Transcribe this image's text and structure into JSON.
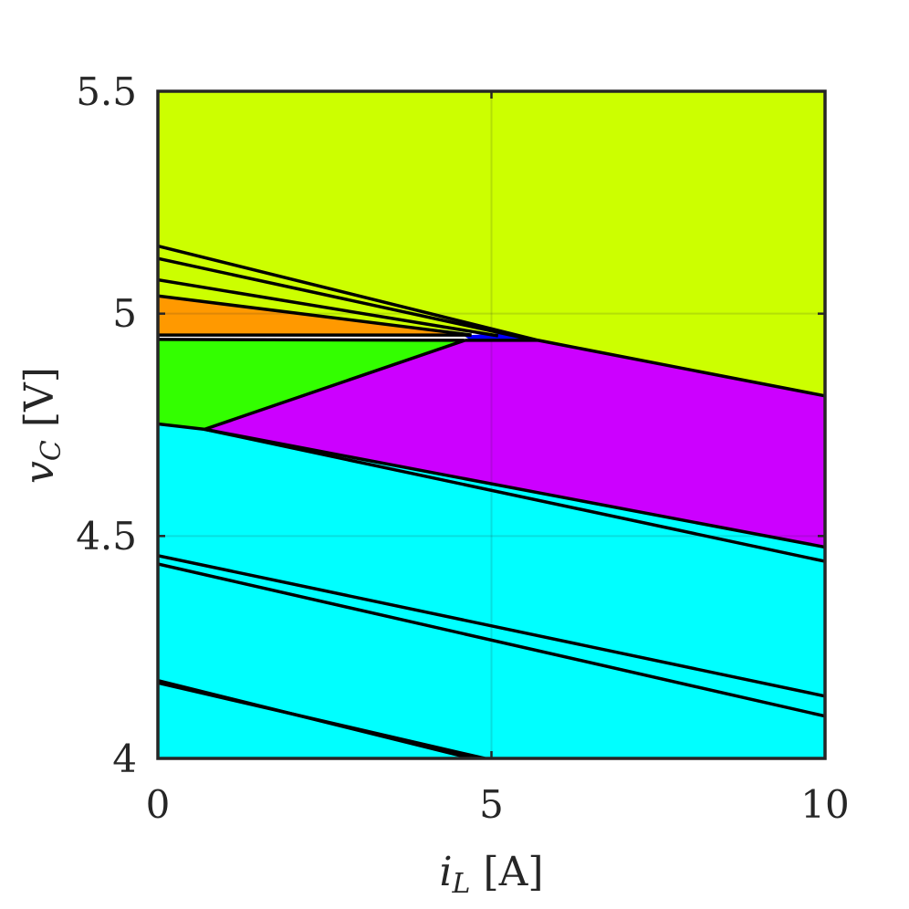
{
  "chart_data": {
    "type": "area",
    "title": "",
    "xlabel": {
      "var": "i",
      "sub": "L",
      "unit": " [A]"
    },
    "ylabel": {
      "var": "v",
      "sub": "C",
      "unit": " [V]"
    },
    "xlim": [
      0,
      10
    ],
    "ylim": [
      4,
      5.5
    ],
    "x_ticks": [
      "0",
      "5",
      "10"
    ],
    "y_ticks": [
      "4",
      "4.5",
      "5",
      "5.5"
    ],
    "x_tick_values": [
      0,
      5,
      10
    ],
    "y_tick_values": [
      4,
      4.5,
      5,
      5.5
    ],
    "grid": true,
    "colors": {
      "yellow_green": "#ccff00",
      "orange": "#ff9900",
      "green": "#33ff00",
      "purple": "#cc00ff",
      "cyan": "#00ffff",
      "blue": "#0000ff",
      "boundary": "#000000"
    },
    "regions": [
      {
        "color": "yellow_green",
        "points": [
          [
            0,
            5.5
          ],
          [
            10,
            5.5
          ],
          [
            10,
            4.815
          ],
          [
            5.7,
            4.94
          ],
          [
            0,
            5.152
          ]
        ]
      },
      {
        "color": "yellow_green",
        "points": [
          [
            0,
            5.152
          ],
          [
            5.7,
            4.94
          ],
          [
            0,
            5.124
          ]
        ]
      },
      {
        "color": "yellow_green",
        "points": [
          [
            0,
            5.124
          ],
          [
            5.5,
            4.945
          ],
          [
            0,
            5.076
          ]
        ]
      },
      {
        "color": "yellow_green",
        "points": [
          [
            0,
            5.076
          ],
          [
            5.1,
            4.95
          ],
          [
            0,
            5.04
          ]
        ]
      },
      {
        "color": "orange",
        "points": [
          [
            0,
            5.04
          ],
          [
            4.7,
            4.952
          ],
          [
            0,
            4.952
          ]
        ]
      },
      {
        "color": "blue",
        "points": [
          [
            4.6,
            4.95
          ],
          [
            5.2,
            4.955
          ],
          [
            5.6,
            4.94
          ],
          [
            4.7,
            4.94
          ]
        ]
      },
      {
        "color": "purple",
        "points": [
          [
            4.6,
            4.94
          ],
          [
            5.7,
            4.94
          ],
          [
            10,
            4.815
          ],
          [
            10,
            4.475
          ],
          [
            0.7,
            4.74
          ]
        ]
      },
      {
        "color": "green",
        "points": [
          [
            0,
            4.942
          ],
          [
            4.6,
            4.94
          ],
          [
            0.7,
            4.74
          ],
          [
            0,
            4.752
          ]
        ]
      },
      {
        "color": "cyan",
        "points": [
          [
            0,
            4.752
          ],
          [
            0.7,
            4.74
          ],
          [
            10,
            4.475
          ],
          [
            10,
            4.0
          ],
          [
            0,
            4.0
          ]
        ]
      }
    ],
    "boundaries": [
      [
        [
          0,
          5.152
        ],
        [
          5.7,
          4.94
        ]
      ],
      [
        [
          0,
          5.124
        ],
        [
          5.5,
          4.945
        ]
      ],
      [
        [
          0,
          5.076
        ],
        [
          5.1,
          4.95
        ]
      ],
      [
        [
          0,
          5.04
        ],
        [
          4.7,
          4.952
        ]
      ],
      [
        [
          0,
          4.952
        ],
        [
          4.7,
          4.952
        ]
      ],
      [
        [
          0,
          4.942
        ],
        [
          4.6,
          4.94
        ]
      ],
      [
        [
          4.6,
          4.94
        ],
        [
          5.7,
          4.94
        ]
      ],
      [
        [
          4.6,
          4.94
        ],
        [
          0.7,
          4.74
        ]
      ],
      [
        [
          5.7,
          4.94
        ],
        [
          10,
          4.815
        ]
      ],
      [
        [
          0,
          4.752
        ],
        [
          0.7,
          4.74
        ]
      ],
      [
        [
          0.7,
          4.74
        ],
        [
          10,
          4.475
        ]
      ],
      [
        [
          0.7,
          4.74
        ],
        [
          10,
          4.443
        ]
      ],
      [
        [
          0,
          4.456
        ],
        [
          10,
          4.14
        ]
      ],
      [
        [
          0,
          4.437
        ],
        [
          10,
          4.095
        ]
      ],
      [
        [
          0,
          4.175
        ],
        [
          4.7,
          4.0
        ]
      ],
      [
        [
          0,
          4.17
        ],
        [
          4.9,
          4.0
        ]
      ]
    ]
  }
}
